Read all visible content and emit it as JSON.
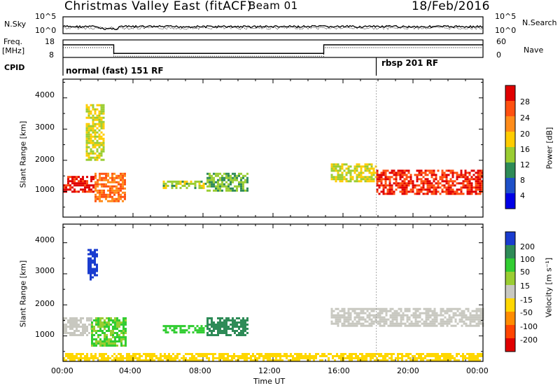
{
  "header": {
    "title": "Christmas Valley East (fitACF)",
    "beam": "Beam 01",
    "date": "18/Feb/2016"
  },
  "noise_panel": {
    "left_label": "N.Sky",
    "right_label": "N.Search",
    "ticks_left": [
      "10^5",
      "10^0"
    ],
    "ticks_right": [
      "10^5",
      "10^0"
    ]
  },
  "freq_panel": {
    "left_label_top": "Freq.",
    "left_label_bottom": "[MHz]",
    "right_label": "Nave",
    "ticks_left": [
      "18",
      "8"
    ],
    "ticks_right": [
      "60",
      "0"
    ]
  },
  "cpid": {
    "label": "CPID",
    "segments": [
      {
        "text": "normal (fast) 151 RF",
        "start_hour": 0
      },
      {
        "text": "rbsp 201 RF",
        "start_hour": 17.9
      }
    ]
  },
  "power_panel": {
    "ylabel": "Slant Range [km]",
    "yticks": [
      "4000",
      "3000",
      "2000",
      "1000"
    ],
    "colorbar_label": "Power [dB]",
    "colorbar_ticks": [
      "28",
      "24",
      "20",
      "16",
      "12",
      "8",
      "4"
    ],
    "colorbar_colors": [
      "#e00000",
      "#ff5010",
      "#ff8c1a",
      "#ffcc00",
      "#9acd32",
      "#2e8b57",
      "#1e50c8",
      "#0000e6"
    ]
  },
  "velocity_panel": {
    "ylabel": "Slant Range [km]",
    "yticks": [
      "4000",
      "3000",
      "2000",
      "1000"
    ],
    "colorbar_label": "Velocity [m s⁻¹]",
    "colorbar_ticks": [
      "200",
      "100",
      "50",
      "15",
      "-15",
      "-50",
      "-100",
      "-200"
    ],
    "colorbar_colors": [
      "#1a3ccf",
      "#2e8b57",
      "#32cd32",
      "#9acd32",
      "#c8c8c0",
      "#ffd700",
      "#ff8c00",
      "#ff4500",
      "#e00000"
    ]
  },
  "xaxis": {
    "label": "Time UT",
    "ticks": [
      "00:00",
      "04:00",
      "08:00",
      "12:00",
      "16:00",
      "20:00",
      "00:00"
    ]
  },
  "chart_data": {
    "type": "heatmap",
    "title": "Christmas Valley East (fitACF)",
    "xlabel": "Time UT",
    "ylabel": "Slant Range [km]",
    "xlim_hours": [
      0,
      24
    ],
    "ylim_km": [
      180,
      4600
    ],
    "freq_mhz": [
      {
        "start": 0,
        "end": 2.9,
        "value": 15.2
      },
      {
        "start": 2.9,
        "end": 14.9,
        "value": 10.3
      },
      {
        "start": 14.9,
        "end": 24,
        "value": 15.2
      }
    ],
    "power_regions": [
      {
        "t0": 0.0,
        "t1": 1.8,
        "r0": 1000,
        "r1": 1500,
        "power_db": 28
      },
      {
        "t0": 1.8,
        "t1": 3.6,
        "r0": 700,
        "r1": 1600,
        "power_db": 22
      },
      {
        "t0": 1.3,
        "t1": 2.3,
        "r0": 2000,
        "r1": 3800,
        "power_db": 14
      },
      {
        "t0": 5.7,
        "t1": 8.2,
        "r0": 1100,
        "r1": 1350,
        "power_db": 12
      },
      {
        "t0": 8.2,
        "t1": 10.6,
        "r0": 1000,
        "r1": 1600,
        "power_db": 10
      },
      {
        "t0": 15.3,
        "t1": 17.9,
        "r0": 1300,
        "r1": 1900,
        "power_db": 14
      },
      {
        "t0": 17.9,
        "t1": 24.0,
        "r0": 900,
        "r1": 1700,
        "power_db": 26
      }
    ],
    "velocity_regions": [
      {
        "t0": 0.0,
        "t1": 1.6,
        "r0": 1000,
        "r1": 1600,
        "velocity": 0
      },
      {
        "t0": 1.6,
        "t1": 3.6,
        "r0": 700,
        "r1": 1600,
        "velocity": 30
      },
      {
        "t0": 1.4,
        "t1": 2.0,
        "r0": 2800,
        "r1": 3800,
        "velocity": 200
      },
      {
        "t0": 5.7,
        "t1": 8.2,
        "r0": 1100,
        "r1": 1350,
        "velocity": 40
      },
      {
        "t0": 8.2,
        "t1": 10.6,
        "r0": 1000,
        "r1": 1600,
        "velocity": 120
      },
      {
        "t0": 15.3,
        "t1": 24.0,
        "r0": 1300,
        "r1": 1900,
        "velocity": 0
      },
      {
        "t0": 0.0,
        "t1": 24.0,
        "r0": 180,
        "r1": 450,
        "velocity": -30
      }
    ]
  }
}
